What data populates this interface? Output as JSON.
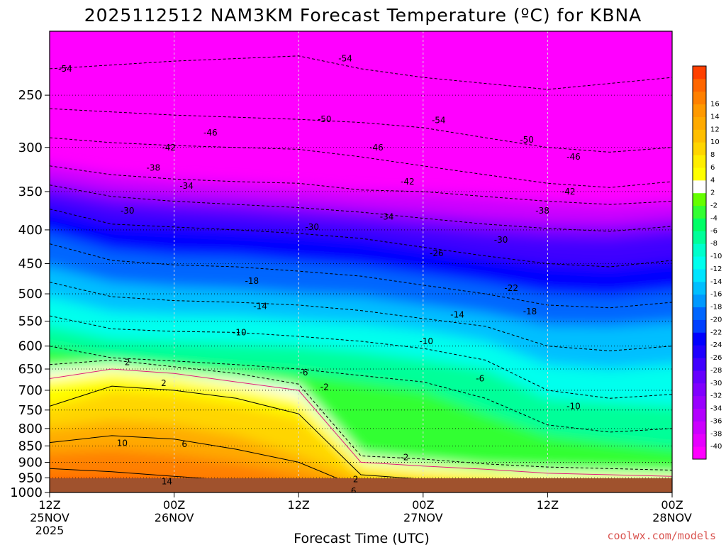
{
  "chart_data": {
    "type": "heatmap",
    "title": "2025112512 NAM3KM Forecast Temperature (ºC) for KBNA",
    "xlabel": "Forecast Time (UTC)",
    "ylabel": "",
    "credit": "coolwx.com/models",
    "x_ticks": [
      {
        "hour": 0,
        "l1": "12Z",
        "l2": "25NOV",
        "l3": "2025"
      },
      {
        "hour": 12,
        "l1": "00Z",
        "l2": "26NOV",
        "l3": ""
      },
      {
        "hour": 24,
        "l1": "12Z",
        "l2": "",
        "l3": ""
      },
      {
        "hour": 36,
        "l1": "00Z",
        "l2": "27NOV",
        "l3": ""
      },
      {
        "hour": 48,
        "l1": "12Z",
        "l2": "",
        "l3": ""
      },
      {
        "hour": 60,
        "l1": "00Z",
        "l2": "28NOV",
        "l3": ""
      }
    ],
    "x_range_hours": [
      0,
      60
    ],
    "y_ticks": [
      "250",
      "300",
      "350",
      "400",
      "450",
      "500",
      "550",
      "600",
      "650",
      "700",
      "750",
      "800",
      "850",
      "900",
      "950",
      "1000"
    ],
    "y_range_hpa": [
      200,
      1000
    ],
    "y_scale": "log",
    "grid": true,
    "colorbar": {
      "placement": "right",
      "colors": [
        "#ff00ff",
        "#e600ff",
        "#cc00ff",
        "#b300ff",
        "#9900ff",
        "#8000ff",
        "#6600ff",
        "#4000ff",
        "#1f00ff",
        "#0000ff",
        "#0040ff",
        "#0066ff",
        "#0099ff",
        "#00bfff",
        "#00e5ff",
        "#00ffee",
        "#00ffcc",
        "#00ff99",
        "#00ff66",
        "#33ff33",
        "#66ff00",
        "#ffffff",
        "#ffff00",
        "#ffee00",
        "#ffd500",
        "#ffbf00",
        "#ffaa00",
        "#ff9900",
        "#ff8000",
        "#ff6600",
        "#ff4000"
      ],
      "labels": [
        "-40",
        "-38",
        "-36",
        "-34",
        "-32",
        "-30",
        "-28",
        "-26",
        "-24",
        "-22",
        "-20",
        "-18",
        "-16",
        "-14",
        "-12",
        "-10",
        "-8",
        "-6",
        "-4",
        "-2",
        "2",
        "4",
        "6",
        "8",
        "10",
        "12",
        "14",
        "16"
      ]
    },
    "contour_labels": [
      {
        "text": "-54",
        "hour": 1.5,
        "p": 228
      },
      {
        "text": "-54",
        "hour": 28.5,
        "p": 220
      },
      {
        "text": "-54",
        "hour": 37.5,
        "p": 273
      },
      {
        "text": "-50",
        "hour": 26.5,
        "p": 272
      },
      {
        "text": "-50",
        "hour": 46,
        "p": 292
      },
      {
        "text": "-46",
        "hour": 15.5,
        "p": 285
      },
      {
        "text": "-46",
        "hour": 31.5,
        "p": 300
      },
      {
        "text": "-46",
        "hour": 50.5,
        "p": 310
      },
      {
        "text": "-42",
        "hour": 11.5,
        "p": 300
      },
      {
        "text": "-42",
        "hour": 34.5,
        "p": 338
      },
      {
        "text": "-42",
        "hour": 50,
        "p": 350
      },
      {
        "text": "-38",
        "hour": 10,
        "p": 322
      },
      {
        "text": "-38",
        "hour": 47.5,
        "p": 374
      },
      {
        "text": "-34",
        "hour": 13.2,
        "p": 343
      },
      {
        "text": "-34",
        "hour": 32.5,
        "p": 382
      },
      {
        "text": "-30",
        "hour": 7.5,
        "p": 374
      },
      {
        "text": "-30",
        "hour": 25.3,
        "p": 396
      },
      {
        "text": "-30",
        "hour": 43.5,
        "p": 414
      },
      {
        "text": "-26",
        "hour": 37.3,
        "p": 434
      },
      {
        "text": "-22",
        "hour": 44.5,
        "p": 490
      },
      {
        "text": "-18",
        "hour": 19.5,
        "p": 478
      },
      {
        "text": "-18",
        "hour": 46.3,
        "p": 532
      },
      {
        "text": "-14",
        "hour": 20.3,
        "p": 522
      },
      {
        "text": "-14",
        "hour": 39.3,
        "p": 538
      },
      {
        "text": "-10",
        "hour": 18.3,
        "p": 572
      },
      {
        "text": "-10",
        "hour": 36.3,
        "p": 590
      },
      {
        "text": "-10",
        "hour": 50.5,
        "p": 740
      },
      {
        "text": "-6",
        "hour": 24.5,
        "p": 658
      },
      {
        "text": "-6",
        "hour": 41.5,
        "p": 672
      },
      {
        "text": "-2",
        "hour": 26.5,
        "p": 692
      },
      {
        "text": "-2",
        "hour": 34.2,
        "p": 885
      },
      {
        "text": "2",
        "hour": 7.5,
        "p": 635
      },
      {
        "text": "2",
        "hour": 11,
        "p": 683
      },
      {
        "text": "2",
        "hour": 29.5,
        "p": 955
      },
      {
        "text": "6",
        "hour": 13,
        "p": 845
      },
      {
        "text": "6",
        "hour": 29.3,
        "p": 995
      },
      {
        "text": "10",
        "hour": 7,
        "p": 842
      },
      {
        "text": "14",
        "hour": 11.3,
        "p": 962
      }
    ]
  }
}
